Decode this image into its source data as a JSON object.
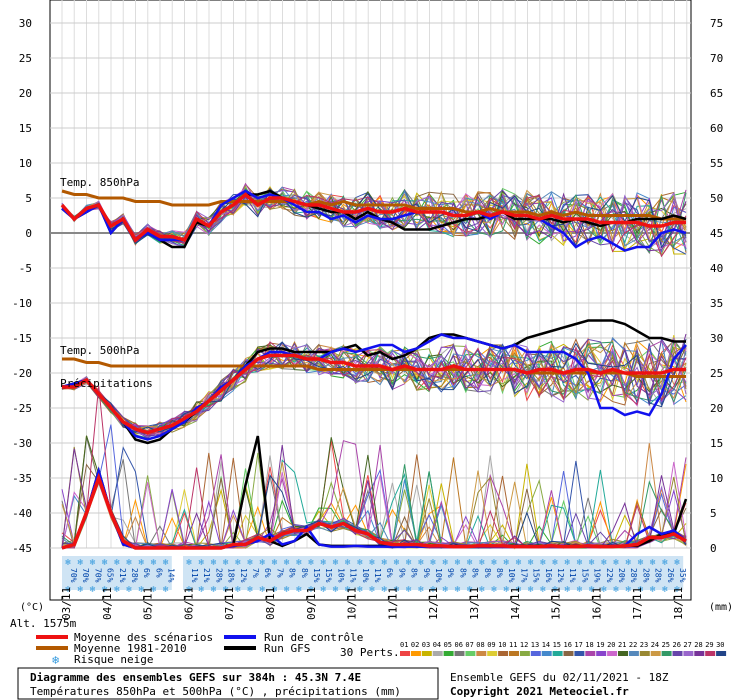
{
  "chart_data": {
    "type": "line",
    "left_axis": {
      "label": "(°C)",
      "min": -45,
      "max": 30,
      "ticks": [
        30,
        25,
        20,
        15,
        10,
        5,
        0,
        -5,
        -10,
        -15,
        -20,
        -25,
        -30,
        -35,
        -40,
        -45
      ]
    },
    "right_axis": {
      "label": "(mm)",
      "min": 0,
      "max": 75,
      "ticks": [
        75,
        70,
        65,
        60,
        55,
        50,
        45,
        40,
        35,
        30,
        25,
        20,
        15,
        10,
        5,
        0
      ]
    },
    "x_labels": [
      "03/11",
      "04/11",
      "05/11",
      "06/11",
      "07/11",
      "08/11",
      "09/11",
      "10/11",
      "11/11",
      "12/11",
      "13/11",
      "14/11",
      "15/11",
      "16/11",
      "17/11",
      "18/11"
    ],
    "panel_labels": {
      "t850": "Temp. 850hPa",
      "t500": "Temp. 500hPa",
      "precip": "Précipitations"
    },
    "altitude": "Alt. 1575m",
    "snow_risk_block1": [
      "70%",
      "70%",
      "70%",
      "65%",
      "21%",
      "28%",
      "6%",
      "6%",
      "14%"
    ],
    "snow_risk_block2": [
      "11%",
      "21%",
      "28%",
      "18%",
      "12%",
      "7%",
      "6%",
      "7%",
      "8%",
      "8%",
      "15%",
      "15%",
      "10%",
      "11%",
      "10%",
      "11%",
      "6%",
      "9%",
      "8%",
      "9%",
      "10%",
      "9%",
      "8%",
      "8%",
      "8%",
      "8%",
      "10%",
      "17%",
      "15%",
      "16%",
      "12%",
      "11%",
      "15%",
      "19%",
      "22%",
      "20%",
      "28%",
      "28%",
      "28%",
      "26%",
      "35%"
    ],
    "series": [
      {
        "name": "Moyenne des scénarios",
        "color": "#ee1111",
        "t850": [
          4,
          2,
          3.5,
          4,
          1,
          2,
          -1,
          0.5,
          -0.5,
          -0.5,
          -1,
          2,
          1,
          3,
          4,
          5.5,
          4,
          5,
          5,
          4.5,
          4,
          4,
          3.5,
          3,
          3,
          3.5,
          3,
          3,
          3.5,
          3,
          3,
          3,
          2.5,
          2.5,
          3,
          2.5,
          3,
          2.5,
          2.5,
          2,
          2.5,
          2,
          2,
          2,
          1.5,
          1.5,
          1.5,
          1.5,
          1,
          1,
          1.5,
          1.5
        ],
        "t500": [
          -22,
          -22,
          -21,
          -23,
          -25,
          -27,
          -28,
          -28.5,
          -28,
          -27.5,
          -26.5,
          -25.5,
          -24,
          -22.5,
          -21,
          -19.5,
          -18,
          -17.5,
          -17.5,
          -17.5,
          -18,
          -18,
          -18.5,
          -18.5,
          -19,
          -19,
          -19,
          -19.5,
          -19,
          -19.5,
          -19.5,
          -19.5,
          -19,
          -19.5,
          -19.5,
          -19.5,
          -19.5,
          -19.5,
          -20,
          -19.5,
          -19.5,
          -20,
          -19.5,
          -19.5,
          -20,
          -19.5,
          -20,
          -20,
          -20,
          -20,
          -19.5,
          -19.5
        ],
        "precip": [
          0,
          0.5,
          5,
          10,
          5,
          1,
          0,
          0,
          0,
          0,
          0,
          0,
          0,
          0,
          0.5,
          0.5,
          1.5,
          1,
          2,
          2.5,
          2.5,
          3.5,
          3,
          3.5,
          2.5,
          2,
          0.8,
          0.5,
          0.5,
          0.5,
          0.3,
          0.3,
          0.2,
          0.2,
          0.3,
          0.3,
          0.3,
          0.2,
          0.2,
          0.2,
          0.3,
          0.2,
          0.2,
          0.3,
          0.2,
          0.2,
          0.3,
          0.5,
          1.5,
          1.5,
          2,
          1
        ]
      },
      {
        "name": "Moyenne 1981-2010",
        "color": "#b35900",
        "t850": [
          6,
          5.5,
          5.5,
          5,
          5,
          5,
          4.5,
          4.5,
          4.5,
          4,
          4,
          4,
          4,
          4.5,
          4.5,
          4.5,
          4.5,
          4.5,
          4.5,
          4.5,
          4,
          4.5,
          4,
          4.5,
          4,
          4,
          4,
          4,
          4,
          3.5,
          3.5,
          3.5,
          3.5,
          3,
          3,
          3.5,
          3,
          3,
          3,
          2.5,
          3,
          2.5,
          3,
          2.5,
          2.5,
          2.5,
          2.5,
          2.5,
          2.5,
          2,
          2,
          2
        ],
        "t500": [
          -18,
          -18,
          -18.5,
          -18.5,
          -19,
          -19,
          -19,
          -19,
          -19,
          -19,
          -19,
          -19,
          -19,
          -19,
          -19,
          -19,
          -19,
          -19,
          -19,
          -19,
          -19,
          -19.5,
          -19.5,
          -19.5,
          -19.5,
          -19.5,
          -19.5,
          -19.5,
          -19.5,
          -19.5,
          -19.5,
          -19.5,
          -19.5,
          -19.5,
          -19.5,
          -19.5,
          -19.5,
          -19.5,
          -20,
          -20,
          -20,
          -20,
          -20,
          -20,
          -20,
          -20,
          -20,
          -20.5,
          -20.5,
          -20.5,
          -20.5,
          -20.5
        ]
      },
      {
        "name": "Run de contrôle",
        "color": "#1111ee",
        "t850": [
          3.5,
          2,
          3,
          4,
          0,
          2,
          -1,
          0,
          -1,
          -1,
          -1,
          2,
          1,
          4,
          5,
          6,
          5,
          5.5,
          5,
          4,
          3,
          3,
          2,
          2.5,
          1.5,
          2.5,
          2,
          2,
          2.5,
          3,
          3,
          3,
          2.5,
          2.5,
          3,
          2,
          3,
          2.5,
          2.5,
          2,
          1,
          0,
          -2,
          -1,
          -0.5,
          -1.5,
          -2.5,
          -2,
          -2,
          0,
          0.5,
          0
        ],
        "t500": [
          -22,
          -21.5,
          -21,
          -23,
          -25,
          -27,
          -29,
          -29.5,
          -29,
          -28,
          -27,
          -25,
          -24,
          -22,
          -21,
          -19,
          -18,
          -17,
          -17,
          -17.5,
          -18,
          -18,
          -17,
          -16.5,
          -17,
          -16.5,
          -16,
          -16,
          -17,
          -16.5,
          -15.5,
          -14.5,
          -15,
          -15,
          -15.5,
          -16,
          -16.5,
          -16,
          -17,
          -17,
          -17,
          -17,
          -18,
          -20,
          -25,
          -25,
          -26,
          -25.5,
          -26,
          -23,
          -18,
          -16
        ],
        "precip": [
          0,
          0.5,
          5,
          11,
          5,
          0.5,
          0,
          0,
          0,
          0,
          0,
          0,
          0,
          0,
          0.3,
          0.5,
          1,
          2,
          0.5,
          1,
          3,
          0.5,
          0.2,
          0.2,
          0.3,
          0.2,
          0.2,
          0.2,
          0.2,
          0.2,
          0.2,
          0.2,
          0.2,
          0.2,
          0.2,
          0.2,
          0.2,
          0.2,
          0.2,
          0.2,
          0.2,
          0.3,
          0.2,
          0.2,
          0.3,
          0.2,
          0.3,
          2,
          3,
          2,
          2.5,
          1
        ]
      },
      {
        "name": "Run GFS",
        "color": "#000000",
        "t850": [
          3.5,
          2,
          3,
          4,
          0,
          2,
          -1,
          0,
          -1,
          -2,
          -2,
          1.5,
          1,
          3,
          4,
          5.5,
          5.5,
          6,
          5,
          4.5,
          4,
          3.5,
          3,
          3,
          2,
          3,
          2,
          1.5,
          0.5,
          0.5,
          0.5,
          1,
          1.5,
          2,
          2,
          2.5,
          3,
          2,
          2,
          2,
          2,
          1.5,
          2,
          1.5,
          1,
          1.5,
          1.5,
          2,
          2,
          2,
          2.5,
          2
        ],
        "t500": [
          -22,
          -21.5,
          -21,
          -23,
          -25,
          -27,
          -29.5,
          -30,
          -29.5,
          -28,
          -27,
          -25.5,
          -24,
          -22,
          -21,
          -19,
          -17,
          -16.5,
          -16.5,
          -17,
          -17,
          -17,
          -17,
          -16.5,
          -16,
          -17.5,
          -17,
          -18,
          -17.5,
          -16.5,
          -15,
          -14.5,
          -14.5,
          -15,
          -15.5,
          -16,
          -16.5,
          -16,
          -15,
          -14.5,
          -14,
          -13.5,
          -13,
          -12.5,
          -12.5,
          -12.5,
          -13,
          -14,
          -15,
          -15,
          -15.5,
          -15.5
        ],
        "precip": [
          0,
          0.5,
          5,
          11,
          5,
          0.5,
          0,
          0,
          0,
          0,
          0,
          0,
          0,
          0,
          0.5,
          9,
          16,
          1,
          0.3,
          1,
          2,
          0.5,
          0.3,
          0.3,
          0.3,
          0.3,
          0.3,
          0.3,
          0.3,
          0.3,
          0.3,
          0.3,
          0.3,
          0.3,
          0.3,
          0.3,
          0.3,
          0.3,
          0.3,
          0.3,
          0.3,
          0.3,
          0.3,
          0.3,
          0.3,
          0.3,
          0.3,
          0.3,
          1,
          2,
          2,
          7
        ]
      }
    ]
  },
  "legend": {
    "moyenne_scenarios": "Moyenne des scénarios",
    "moyenne_1981": "Moyenne 1981-2010",
    "risque_neige": "Risque neige",
    "run_controle": "Run de contrôle",
    "run_gfs": "Run GFS",
    "perts_label": "30 Perts.",
    "perts": [
      "01",
      "02",
      "03",
      "04",
      "05",
      "06",
      "07",
      "08",
      "09",
      "10",
      "11",
      "12",
      "13",
      "14",
      "15",
      "16",
      "17",
      "18",
      "19",
      "20",
      "21",
      "22",
      "23",
      "24",
      "25",
      "26",
      "27",
      "28",
      "29",
      "30"
    ],
    "perts_colors": [
      "#ee4444",
      "#ff9900",
      "#c8b400",
      "#aaaaaa",
      "#33aa33",
      "#777777",
      "#66cc66",
      "#cc8844",
      "#ddcc33",
      "#aa6633",
      "#bb7722",
      "#88aa44",
      "#5566dd",
      "#4488cc",
      "#22aa99",
      "#886644",
      "#3355aa",
      "#aa44aa",
      "#8844cc",
      "#cc66cc",
      "#446622",
      "#5588bb",
      "#998833",
      "#cc9944",
      "#339966",
      "#6644aa",
      "#9966cc",
      "#773399",
      "#bb3366",
      "#224488"
    ]
  },
  "footer": {
    "title": "Diagramme des ensembles GEFS sur 384h : 45.3N 7.4E",
    "subtitle": "Températures 850hPa et 500hPa (°C) , précipitations (mm)",
    "run_info": "Ensemble GEFS du 02/11/2021 - 18Z",
    "copyright": "Copyright 2021 Meteociel.fr"
  }
}
